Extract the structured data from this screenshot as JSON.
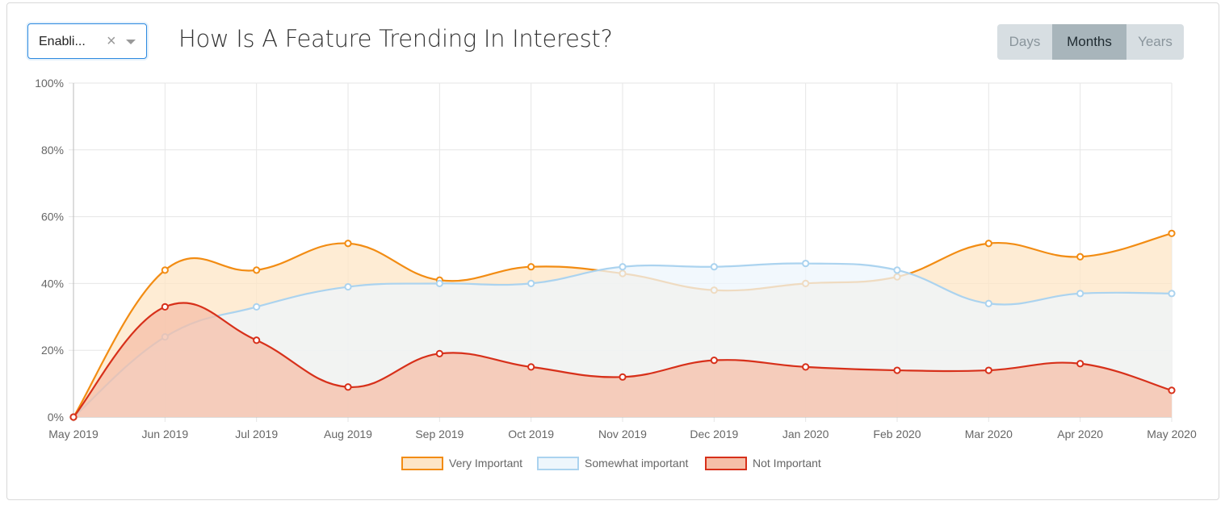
{
  "filter": {
    "value": "Enabli...",
    "clear_icon": "×"
  },
  "title": "How Is A Feature Trending In Interest?",
  "period_buttons": {
    "days": "Days",
    "months": "Months",
    "years": "Years",
    "active": "months"
  },
  "chart_data": {
    "type": "area",
    "categories": [
      "May 2019",
      "Jun 2019",
      "Jul 2019",
      "Aug 2019",
      "Sep 2019",
      "Oct 2019",
      "Nov 2019",
      "Dec 2019",
      "Jan 2020",
      "Feb 2020",
      "Mar 2020",
      "Apr 2020",
      "May 2020"
    ],
    "y_ticks": [
      "0%",
      "20%",
      "40%",
      "60%",
      "80%",
      "100%"
    ],
    "ylim": [
      0,
      100
    ],
    "grid": true,
    "legend_position": "bottom",
    "series": [
      {
        "name": "Very Important",
        "color": "#f28c13",
        "fill": "#fde5c6",
        "values": [
          0,
          44,
          44,
          52,
          41,
          45,
          43,
          38,
          40,
          42,
          52,
          48,
          55
        ]
      },
      {
        "name": "Somewhat important",
        "color": "#abd3ef",
        "fill": "#eef6fc",
        "values": [
          0,
          24,
          33,
          39,
          40,
          40,
          45,
          45,
          46,
          44,
          34,
          37,
          37
        ]
      },
      {
        "name": "Not Important",
        "color": "#d7301a",
        "fill": "#f5bfa8",
        "values": [
          0,
          33,
          23,
          9,
          19,
          15,
          12,
          17,
          15,
          14,
          14,
          16,
          8
        ]
      }
    ]
  }
}
